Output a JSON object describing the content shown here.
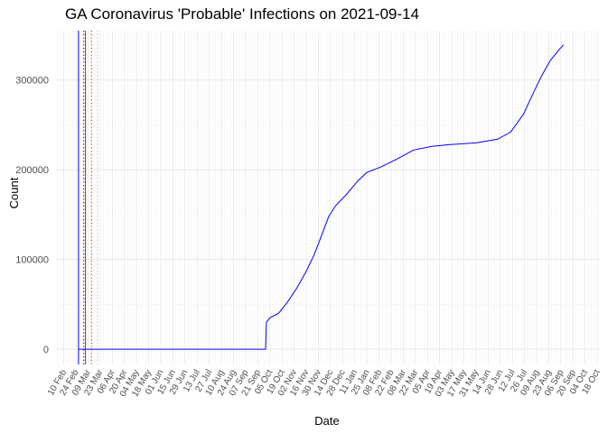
{
  "chart_data": {
    "type": "line",
    "title": "GA Coronavirus 'Probable' Infections on 2021-09-14",
    "xlabel": "Date",
    "ylabel": "Count",
    "x_type": "date",
    "xlim": [
      "2020-02-01",
      "2021-10-21"
    ],
    "ylim": [
      -17000,
      355000
    ],
    "grid": true,
    "y_ticks": [
      0,
      100000,
      200000,
      300000
    ],
    "y_tick_labels": [
      "0",
      "100000",
      "200000",
      "300000"
    ],
    "x_tick_labels": [
      "10 Feb",
      "24 Feb",
      "09 Mar",
      "23 Mar",
      "06 Apr",
      "20 Apr",
      "04 May",
      "18 May",
      "01 Jun",
      "15 Jun",
      "29 Jun",
      "13 Jul",
      "27 Jul",
      "10 Aug",
      "24 Aug",
      "07 Sep",
      "21 Sep",
      "05 Oct",
      "19 Oct",
      "02 Nov",
      "16 Nov",
      "30 Nov",
      "14 Dec",
      "28 Dec",
      "11 Jan",
      "25 Jan",
      "08 Feb",
      "22 Feb",
      "08 Mar",
      "22 Mar",
      "05 Apr",
      "19 Apr",
      "03 May",
      "17 May",
      "31 May",
      "14 Jun",
      "28 Jun",
      "12 Jul",
      "26 Jul",
      "09 Aug",
      "23 Aug",
      "06 Sep",
      "20 Sep",
      "04 Oct",
      "18 Oct"
    ],
    "vertical_lines": [
      {
        "date": "2020-02-27",
        "color": "#0000ff",
        "style": "solid"
      },
      {
        "date": "2020-03-04",
        "color": "#000000",
        "style": "dotted"
      },
      {
        "date": "2020-03-06",
        "color": "#ff0000",
        "style": "solid"
      },
      {
        "date": "2020-03-13",
        "color": "#ff0000",
        "style": "dotted"
      },
      {
        "date": "2020-03-20",
        "color": "#ffaaaa",
        "style": "dotted"
      }
    ],
    "series": [
      {
        "color": "#0000ff",
        "points": [
          [
            "2020-02-27",
            0
          ],
          [
            "2020-09-30",
            0
          ],
          [
            "2020-10-01",
            30000
          ],
          [
            "2020-10-05",
            35000
          ],
          [
            "2020-10-15",
            40000
          ],
          [
            "2020-10-25",
            52000
          ],
          [
            "2020-11-05",
            68000
          ],
          [
            "2020-11-15",
            85000
          ],
          [
            "2020-11-25",
            105000
          ],
          [
            "2020-12-05",
            130000
          ],
          [
            "2020-12-12",
            148000
          ],
          [
            "2020-12-20",
            160000
          ],
          [
            "2021-01-01",
            172000
          ],
          [
            "2021-01-15",
            188000
          ],
          [
            "2021-01-25",
            197000
          ],
          [
            "2021-02-10",
            203000
          ],
          [
            "2021-03-01",
            212000
          ],
          [
            "2021-03-20",
            222000
          ],
          [
            "2021-04-10",
            226000
          ],
          [
            "2021-05-01",
            228000
          ],
          [
            "2021-06-01",
            230000
          ],
          [
            "2021-06-25",
            234000
          ],
          [
            "2021-07-10",
            242000
          ],
          [
            "2021-07-25",
            262000
          ],
          [
            "2021-08-05",
            285000
          ],
          [
            "2021-08-15",
            305000
          ],
          [
            "2021-08-25",
            322000
          ],
          [
            "2021-09-05",
            335000
          ],
          [
            "2021-09-09",
            339000
          ]
        ]
      }
    ]
  }
}
